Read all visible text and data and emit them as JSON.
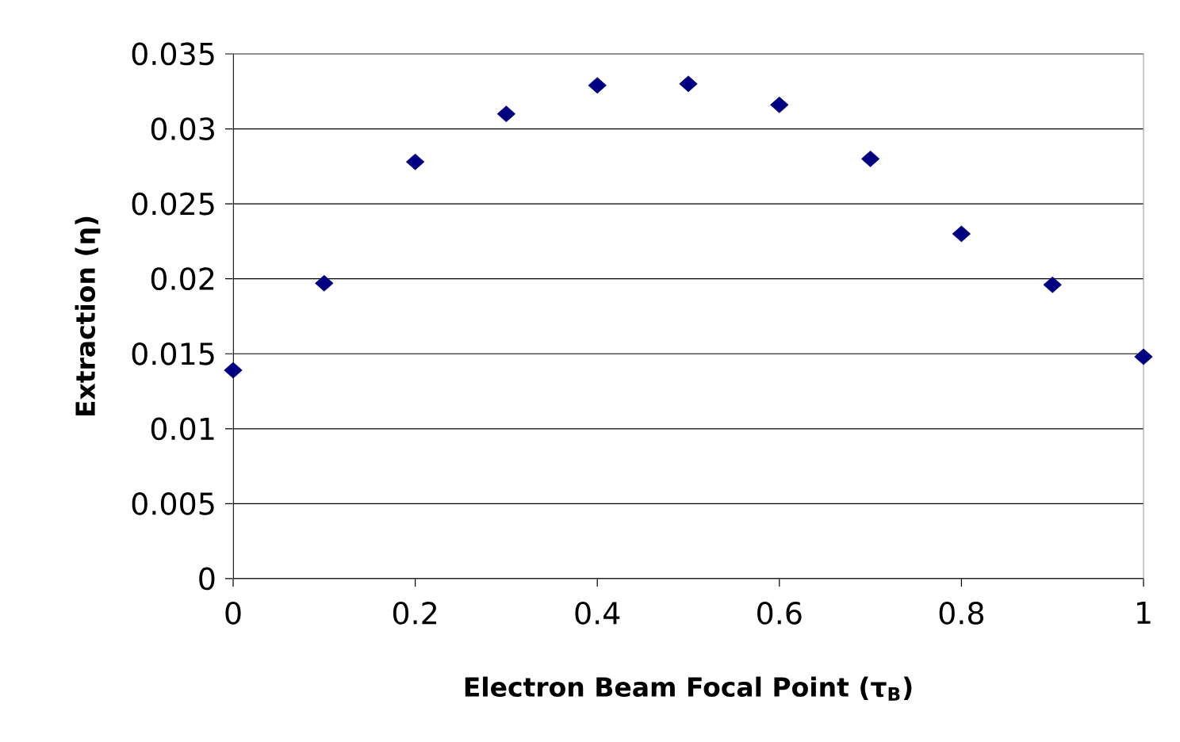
{
  "chart_data": {
    "type": "scatter",
    "xlabel": "Electron Beam Focal Point (τ$_{B}$)",
    "ylabel": "Extraction (η)",
    "x": [
      0,
      0.1,
      0.2,
      0.3,
      0.4,
      0.5,
      0.6,
      0.7,
      0.8,
      0.9,
      1
    ],
    "series": [
      {
        "color": "#000080",
        "values": [
          0.0139,
          0.0197,
          0.0278,
          0.031,
          0.0329,
          0.033,
          0.0316,
          0.028,
          0.023,
          0.0196,
          0.0148
        ]
      }
    ],
    "xlim": [
      0,
      1
    ],
    "ylim": [
      0,
      0.035
    ],
    "xticks": [
      0,
      0.2,
      0.4,
      0.6,
      0.8,
      1
    ],
    "yticks": [
      0,
      0.005,
      0.01,
      0.015,
      0.02,
      0.025,
      0.03,
      0.035
    ],
    "grid": "y",
    "marker": "diamond"
  }
}
